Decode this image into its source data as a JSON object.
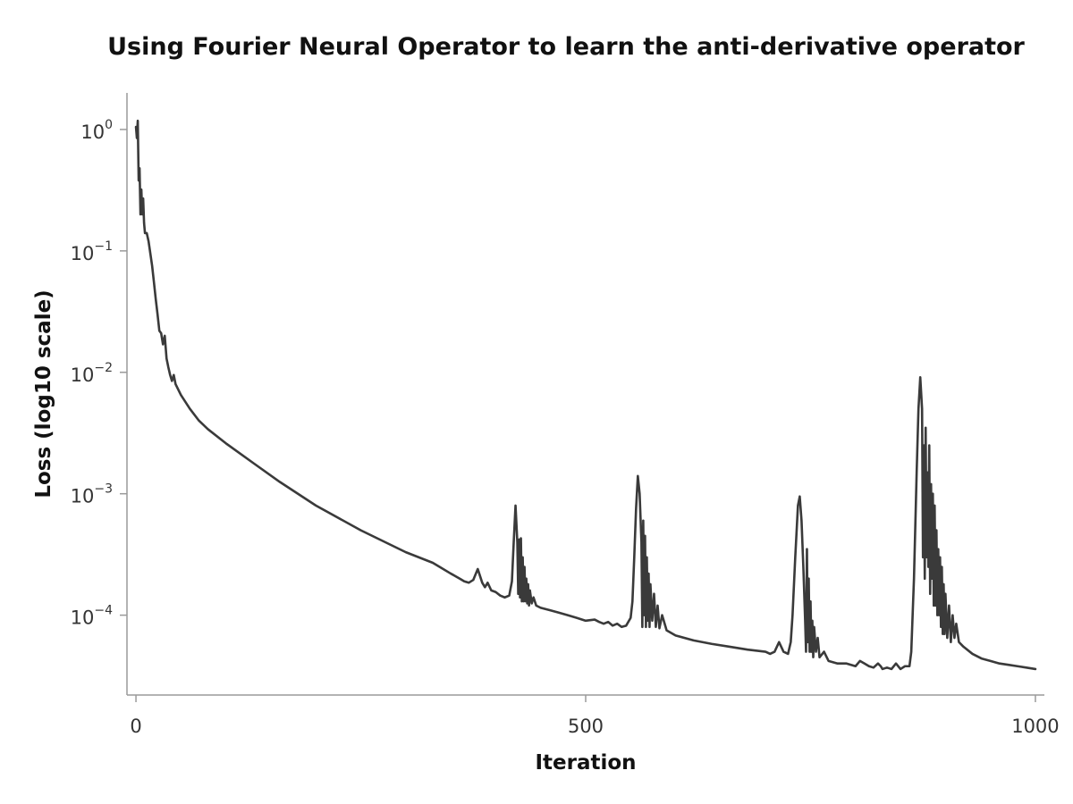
{
  "chart_data": {
    "type": "line",
    "title": "Using Fourier Neural Operator to learn the anti-derivative operator",
    "xlabel": "Iteration",
    "ylabel": "Loss (log10 scale)",
    "xlim": [
      -10,
      1010
    ],
    "ylim": [
      2.2e-05,
      2
    ],
    "yscale": "log10",
    "xticks": [
      0,
      500,
      1000
    ],
    "xtick_labels": [
      "0",
      "500",
      "1000"
    ],
    "yticks": [
      1,
      0.1,
      0.01,
      0.001,
      0.0001
    ],
    "ytick_labels": [
      {
        "base": "10",
        "exp": "0"
      },
      {
        "base": "10",
        "exp": "−1"
      },
      {
        "base": "10",
        "exp": "−2"
      },
      {
        "base": "10",
        "exp": "−3"
      },
      {
        "base": "10",
        "exp": "−4"
      }
    ],
    "grid": false,
    "series": [
      {
        "line_color": "#3a3a3a",
        "points": [
          [
            0,
            1.05
          ],
          [
            1,
            0.85
          ],
          [
            2,
            1.18
          ],
          [
            3,
            0.38
          ],
          [
            4,
            0.48
          ],
          [
            5,
            0.2
          ],
          [
            6,
            0.32
          ],
          [
            7,
            0.2
          ],
          [
            8,
            0.27
          ],
          [
            9,
            0.17
          ],
          [
            10,
            0.14
          ],
          [
            12,
            0.14
          ],
          [
            14,
            0.12
          ],
          [
            16,
            0.095
          ],
          [
            18,
            0.075
          ],
          [
            20,
            0.055
          ],
          [
            22,
            0.04
          ],
          [
            24,
            0.03
          ],
          [
            26,
            0.022
          ],
          [
            28,
            0.021
          ],
          [
            30,
            0.017
          ],
          [
            32,
            0.02
          ],
          [
            34,
            0.013
          ],
          [
            36,
            0.011
          ],
          [
            38,
            0.0095
          ],
          [
            40,
            0.0085
          ],
          [
            42,
            0.0095
          ],
          [
            44,
            0.008
          ],
          [
            50,
            0.0065
          ],
          [
            60,
            0.005
          ],
          [
            70,
            0.004
          ],
          [
            80,
            0.0034
          ],
          [
            100,
            0.0026
          ],
          [
            130,
            0.0018
          ],
          [
            160,
            0.00125
          ],
          [
            200,
            0.0008
          ],
          [
            250,
            0.0005
          ],
          [
            300,
            0.00033
          ],
          [
            330,
            0.00027
          ],
          [
            350,
            0.00022
          ],
          [
            360,
            0.0002
          ],
          [
            365,
            0.00019
          ],
          [
            370,
            0.000185
          ],
          [
            375,
            0.000195
          ],
          [
            380,
            0.00024
          ],
          [
            385,
            0.000185
          ],
          [
            388,
            0.00017
          ],
          [
            391,
            0.000185
          ],
          [
            395,
            0.00016
          ],
          [
            400,
            0.000155
          ],
          [
            405,
            0.000145
          ],
          [
            410,
            0.00014
          ],
          [
            415,
            0.000145
          ],
          [
            418,
            0.00019
          ],
          [
            420,
            0.0004
          ],
          [
            422,
            0.0008
          ],
          [
            424,
            0.0004
          ],
          [
            425,
            0.00015
          ],
          [
            426,
            0.00042
          ],
          [
            427,
            0.00014
          ],
          [
            428,
            0.00043
          ],
          [
            429,
            0.00013
          ],
          [
            430,
            0.0003
          ],
          [
            431,
            0.00013
          ],
          [
            432,
            0.00025
          ],
          [
            433,
            0.00013
          ],
          [
            434,
            0.0002
          ],
          [
            435,
            0.000125
          ],
          [
            436,
            0.00018
          ],
          [
            437,
            0.00012
          ],
          [
            438,
            0.00016
          ],
          [
            440,
            0.000125
          ],
          [
            442,
            0.00014
          ],
          [
            445,
            0.00012
          ],
          [
            450,
            0.000115
          ],
          [
            460,
            0.00011
          ],
          [
            470,
            0.000105
          ],
          [
            480,
            0.0001
          ],
          [
            490,
            9.5e-05
          ],
          [
            500,
            9e-05
          ],
          [
            510,
            9.2e-05
          ],
          [
            515,
            8.8e-05
          ],
          [
            520,
            8.5e-05
          ],
          [
            525,
            8.8e-05
          ],
          [
            530,
            8.2e-05
          ],
          [
            535,
            8.5e-05
          ],
          [
            540,
            8e-05
          ],
          [
            545,
            8.2e-05
          ],
          [
            550,
            9.5e-05
          ],
          [
            552,
            0.00013
          ],
          [
            554,
            0.0003
          ],
          [
            556,
            0.00075
          ],
          [
            558,
            0.0014
          ],
          [
            560,
            0.001
          ],
          [
            562,
            0.0004
          ],
          [
            563,
            8e-05
          ],
          [
            564,
            0.0006
          ],
          [
            565,
            0.0001
          ],
          [
            566,
            0.00045
          ],
          [
            567,
            8e-05
          ],
          [
            568,
            0.0003
          ],
          [
            569,
            9e-05
          ],
          [
            570,
            0.00022
          ],
          [
            571,
            8e-05
          ],
          [
            572,
            0.00018
          ],
          [
            574,
            9e-05
          ],
          [
            576,
            0.00015
          ],
          [
            578,
            8e-05
          ],
          [
            580,
            0.00012
          ],
          [
            582,
            7.8e-05
          ],
          [
            585,
            0.0001
          ],
          [
            590,
            7.5e-05
          ],
          [
            600,
            6.8e-05
          ],
          [
            620,
            6.2e-05
          ],
          [
            640,
            5.8e-05
          ],
          [
            660,
            5.5e-05
          ],
          [
            680,
            5.2e-05
          ],
          [
            700,
            5e-05
          ],
          [
            705,
            4.8e-05
          ],
          [
            710,
            5e-05
          ],
          [
            715,
            6e-05
          ],
          [
            720,
            5e-05
          ],
          [
            725,
            4.8e-05
          ],
          [
            728,
            6e-05
          ],
          [
            730,
            0.0001
          ],
          [
            733,
            0.0003
          ],
          [
            736,
            0.0008
          ],
          [
            738,
            0.00095
          ],
          [
            740,
            0.0006
          ],
          [
            742,
            0.00025
          ],
          [
            744,
            9e-05
          ],
          [
            745,
            5e-05
          ],
          [
            746,
            0.00035
          ],
          [
            747,
            6e-05
          ],
          [
            748,
            0.0002
          ],
          [
            749,
            5e-05
          ],
          [
            750,
            0.00013
          ],
          [
            751,
            5e-05
          ],
          [
            752,
            9e-05
          ],
          [
            753,
            4.5e-05
          ],
          [
            754,
            8e-05
          ],
          [
            756,
            5e-05
          ],
          [
            758,
            6.5e-05
          ],
          [
            760,
            4.5e-05
          ],
          [
            765,
            5e-05
          ],
          [
            770,
            4.2e-05
          ],
          [
            780,
            4e-05
          ],
          [
            790,
            4e-05
          ],
          [
            800,
            3.8e-05
          ],
          [
            805,
            4.2e-05
          ],
          [
            810,
            4e-05
          ],
          [
            815,
            3.8e-05
          ],
          [
            820,
            3.7e-05
          ],
          [
            825,
            4e-05
          ],
          [
            828,
            3.8e-05
          ],
          [
            830,
            3.6e-05
          ],
          [
            835,
            3.7e-05
          ],
          [
            840,
            3.6e-05
          ],
          [
            845,
            4e-05
          ],
          [
            850,
            3.6e-05
          ],
          [
            855,
            3.8e-05
          ],
          [
            860,
            3.8e-05
          ],
          [
            862,
            5e-05
          ],
          [
            865,
            0.0002
          ],
          [
            868,
            0.0015
          ],
          [
            870,
            0.005
          ],
          [
            872,
            0.0091
          ],
          [
            874,
            0.005
          ],
          [
            875,
            0.0003
          ],
          [
            876,
            0.0025
          ],
          [
            877,
            0.0002
          ],
          [
            878,
            0.0035
          ],
          [
            879,
            0.0003
          ],
          [
            880,
            0.0015
          ],
          [
            881,
            0.00025
          ],
          [
            882,
            0.0025
          ],
          [
            883,
            0.00015
          ],
          [
            884,
            0.0012
          ],
          [
            885,
            0.0002
          ],
          [
            886,
            0.001
          ],
          [
            887,
            0.00012
          ],
          [
            888,
            0.0008
          ],
          [
            889,
            0.00012
          ],
          [
            890,
            0.0005
          ],
          [
            891,
            0.0001
          ],
          [
            892,
            0.00035
          ],
          [
            893,
            0.0001
          ],
          [
            894,
            0.0003
          ],
          [
            895,
            8e-05
          ],
          [
            896,
            0.00025
          ],
          [
            897,
            7e-05
          ],
          [
            898,
            0.00018
          ],
          [
            899,
            7e-05
          ],
          [
            900,
            0.00015
          ],
          [
            902,
            6.5e-05
          ],
          [
            904,
            0.00012
          ],
          [
            906,
            6e-05
          ],
          [
            908,
            0.0001
          ],
          [
            910,
            6.5e-05
          ],
          [
            912,
            8.5e-05
          ],
          [
            915,
            6e-05
          ],
          [
            920,
            5.5e-05
          ],
          [
            930,
            4.8e-05
          ],
          [
            940,
            4.4e-05
          ],
          [
            950,
            4.2e-05
          ],
          [
            960,
            4e-05
          ],
          [
            970,
            3.9e-05
          ],
          [
            980,
            3.8e-05
          ],
          [
            990,
            3.7e-05
          ],
          [
            1000,
            3.6e-05
          ]
        ]
      }
    ]
  }
}
